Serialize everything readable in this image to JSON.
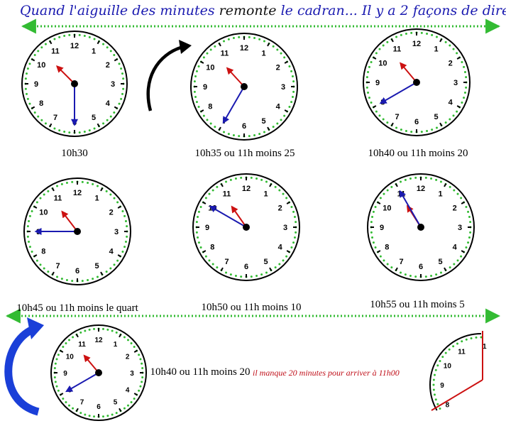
{
  "title": {
    "part1": "Quand l'aiguille des minutes",
    "part2": "remonte",
    "part3": "le cadran... Il y a 2 façons de dire l'heure."
  },
  "clock_numbers": [
    "12",
    "1",
    "2",
    "3",
    "4",
    "5",
    "6",
    "7",
    "8",
    "9",
    "10",
    "11"
  ],
  "clocks": [
    {
      "id": "c1030",
      "caption": "10h30",
      "hour": 10,
      "minute": 30
    },
    {
      "id": "c1035",
      "caption": "10h35 ou 11h moins 25",
      "hour": 10,
      "minute": 35
    },
    {
      "id": "c1040",
      "caption": "10h40 ou 11h moins 20",
      "hour": 10,
      "minute": 40
    },
    {
      "id": "c1045",
      "caption": "10h45 ou 11h moins le quart",
      "hour": 10,
      "minute": 45
    },
    {
      "id": "c1050",
      "caption": "10h50 ou 11h moins 10",
      "hour": 10,
      "minute": 50
    },
    {
      "id": "c1055",
      "caption": "10h55 ou 11h moins 5",
      "hour": 10,
      "minute": 55
    },
    {
      "id": "cbottom",
      "caption": "10h40 ou 11h moins 20",
      "hour": 10,
      "minute": 40
    }
  ],
  "note": "il manque 20 minutes pour arriver à 11h00",
  "partial_dial_numbers": [
    "1",
    "11",
    "10",
    "9",
    "8"
  ],
  "colors": {
    "title_blue": "#1a1ab0",
    "dotted_rule": "#33bb33",
    "hour_hand": "#cc1111",
    "minute_hand": "#1a1ab0",
    "big_arrow": "#1a3fd8",
    "note_red": "#c0101a"
  }
}
